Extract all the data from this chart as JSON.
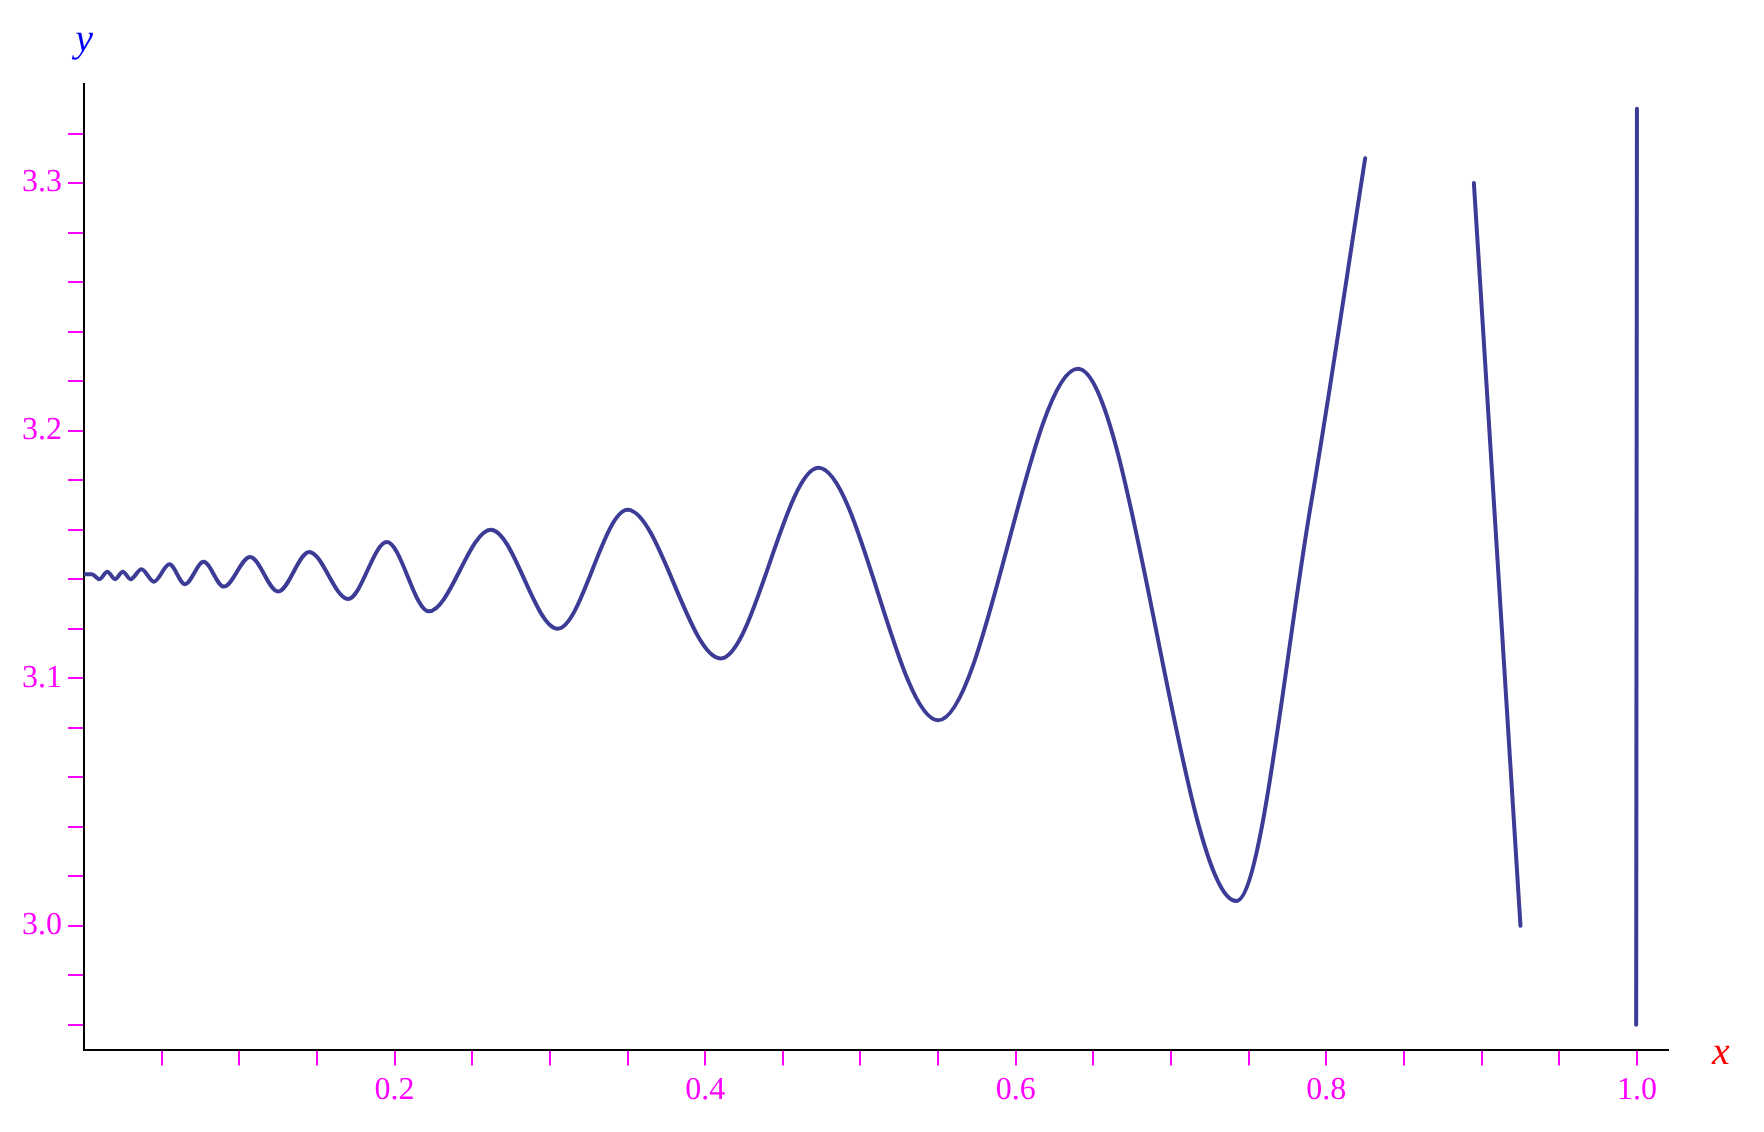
{
  "chart_data": {
    "type": "line",
    "xlabel": "x",
    "ylabel": "y",
    "x": [
      0,
      0.005,
      0.01,
      0.015,
      0.02,
      0.025,
      0.03,
      0.037,
      0.045,
      0.055,
      0.065,
      0.077,
      0.09,
      0.107,
      0.125,
      0.145,
      0.17,
      0.195,
      0.222,
      0.262,
      0.305,
      0.35,
      0.41,
      0.473,
      0.55,
      0.64,
      0.742,
      0.79,
      0.825,
      0.86,
      0.895,
      0.91,
      0.925,
      0.96,
      0.9995,
      1.0
    ],
    "series": [
      {
        "color": "#3c3c96",
        "values": [
          3.142,
          3.142,
          3.14,
          3.143,
          3.14,
          3.143,
          3.14,
          3.144,
          3.139,
          3.146,
          3.138,
          3.147,
          3.137,
          3.149,
          3.135,
          3.151,
          3.132,
          3.155,
          3.127,
          3.16,
          3.12,
          3.168,
          3.108,
          3.185,
          3.083,
          3.225,
          3.01,
          3.17,
          3.31,
          null,
          3.3,
          3.15,
          3.0,
          null,
          2.96,
          3.33
        ]
      }
    ],
    "xlim": [
      0,
      1.02
    ],
    "ylim": [
      2.95,
      3.34
    ],
    "xticks": [
      {
        "value": 0.05,
        "label": null
      },
      {
        "value": 0.1,
        "label": null
      },
      {
        "value": 0.15,
        "label": null
      },
      0.2,
      {
        "value": 0.25,
        "label": null
      },
      {
        "value": 0.3,
        "label": null
      },
      {
        "value": 0.35,
        "label": null
      },
      0.4,
      {
        "value": 0.45,
        "label": null
      },
      {
        "value": 0.5,
        "label": null
      },
      {
        "value": 0.55,
        "label": null
      },
      0.6,
      {
        "value": 0.65,
        "label": null
      },
      {
        "value": 0.7,
        "label": null
      },
      {
        "value": 0.75,
        "label": null
      },
      0.8,
      {
        "value": 0.85,
        "label": null
      },
      {
        "value": 0.9,
        "label": null
      },
      {
        "value": 0.95,
        "label": null
      },
      {
        "value": 1,
        "label": "1.0"
      }
    ],
    "yticks": [
      {
        "value": 2.96,
        "label": null
      },
      {
        "value": 2.98,
        "label": null
      },
      {
        "value": 3,
        "label": "3.0"
      },
      {
        "value": 3.02,
        "label": null
      },
      {
        "value": 3.04,
        "label": null
      },
      {
        "value": 3.06,
        "label": null
      },
      {
        "value": 3.08,
        "label": null
      },
      3.1,
      {
        "value": 3.12,
        "label": null
      },
      {
        "value": 3.14,
        "label": null
      },
      {
        "value": 3.16,
        "label": null
      },
      {
        "value": 3.18,
        "label": null
      },
      3.2,
      {
        "value": 3.22,
        "label": null
      },
      {
        "value": 3.24,
        "label": null
      },
      {
        "value": 3.26,
        "label": null
      },
      {
        "value": 3.28,
        "label": null
      },
      3.3,
      {
        "value": 3.32,
        "label": null
      }
    ],
    "grid": false,
    "legend": false,
    "marker": "none",
    "line_style": "solid"
  }
}
